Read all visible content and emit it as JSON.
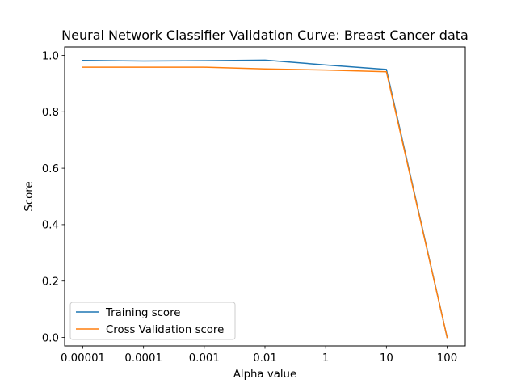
{
  "chart_data": {
    "type": "line",
    "title": "Neural Network Classifier Validation Curve: Breast Cancer data",
    "xlabel": "Alpha value",
    "ylabel": "Score",
    "categories": [
      "0.00001",
      "0.0001",
      "0.001",
      "0.01",
      "1",
      "10",
      "100"
    ],
    "y_ticks": [
      "0.0",
      "0.2",
      "0.4",
      "0.6",
      "0.8",
      "1.0"
    ],
    "ylim": [
      -0.03,
      1.03
    ],
    "legend_position": "lower-left",
    "grid": false,
    "series": [
      {
        "name": "Training score",
        "color": "#1f77b4",
        "values": [
          0.982,
          0.98,
          0.981,
          0.983,
          0.966,
          0.95,
          0.0
        ]
      },
      {
        "name": "Cross Validation score",
        "color": "#ff7f0e",
        "values": [
          0.958,
          0.958,
          0.958,
          0.952,
          0.948,
          0.942,
          0.0
        ]
      }
    ]
  }
}
